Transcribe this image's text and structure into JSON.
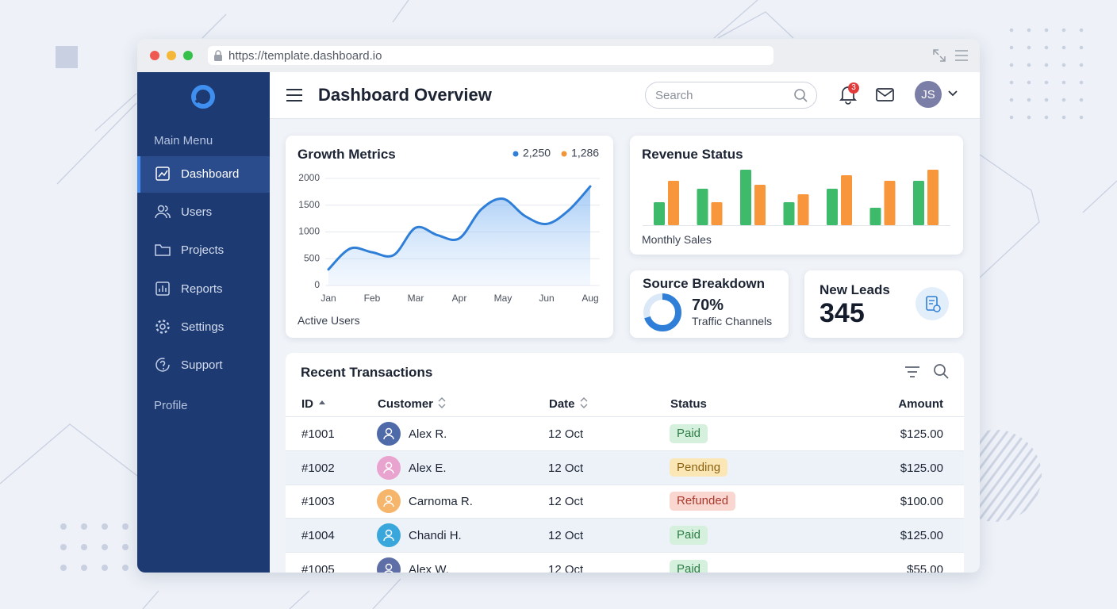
{
  "browser": {
    "url": "https://template.dashboard.io"
  },
  "sidebar": {
    "section_label": "Main Menu",
    "items": [
      "Dashboard",
      "Users",
      "Projects",
      "Reports",
      "Settings",
      "Support"
    ],
    "active": 0,
    "footer": "Profile"
  },
  "header": {
    "title": "Dashboard Overview",
    "search_placeholder": "Search",
    "notification_count": "3",
    "avatar": "JS"
  },
  "chart_data": [
    {
      "type": "line",
      "title": "Growth Metrics",
      "legend": [
        {
          "label": "2,250",
          "color": "#2f7fd8"
        },
        {
          "label": "1,286",
          "color": "#f0953a"
        }
      ],
      "categories": [
        "Jan",
        null,
        "Feb",
        null,
        "Mar",
        null,
        "Apr",
        null,
        "May",
        null,
        "Jun",
        null,
        "Aug"
      ],
      "values": [
        300,
        690,
        620,
        570,
        1080,
        940,
        880,
        1420,
        1620,
        1300,
        1150,
        1400,
        1850
      ],
      "color": "#2f7fd8",
      "ylim": [
        0,
        2000
      ],
      "yticks": [
        0,
        500,
        1000,
        1500,
        2000
      ],
      "grid": true,
      "caption": "Active Users"
    },
    {
      "type": "bar",
      "title": "Revenue Status",
      "categories": [
        null,
        null,
        null,
        null,
        null,
        null,
        null
      ],
      "series": [
        {
          "color": "#3dbb6a",
          "values": [
            29,
            46,
            70,
            29,
            46,
            22,
            56
          ]
        },
        {
          "color": "#f7963a",
          "values": [
            56,
            29,
            51,
            39,
            63,
            56,
            70
          ]
        }
      ],
      "ylim": [
        0,
        70
      ],
      "caption": "Monthly Sales"
    },
    {
      "type": "pie",
      "title": "Source Breakdown",
      "values": [
        70,
        30
      ],
      "value_labels": [
        "70%",
        null
      ],
      "colors": [
        "#2f7fd8",
        "#dbe8f7"
      ],
      "subtitle": "Traffic Channels"
    }
  ],
  "leads": {
    "title": "New Leads",
    "value": "345"
  },
  "table": {
    "title": "Recent Transactions",
    "columns": [
      "ID",
      "Customer",
      "Date",
      "Status",
      "Amount"
    ],
    "rows": [
      {
        "id": "#1001",
        "customer": "Alex R.",
        "date": "12 Oct",
        "status": "Paid",
        "amount": "$125.00",
        "avatar_color": "#4f6aa8",
        "status_colors": [
          "#d5f0dc",
          "#2e7d47"
        ]
      },
      {
        "id": "#1002",
        "customer": "Alex E.",
        "date": "12 Oct",
        "status": "Pending",
        "amount": "$125.00",
        "avatar_color": "#e9a3cf",
        "status_colors": [
          "#fbe7b6",
          "#8a6212"
        ]
      },
      {
        "id": "#1003",
        "customer": "Carnoma R.",
        "date": "12 Oct",
        "status": "Refunded",
        "amount": "$100.00",
        "avatar_color": "#f5b56a",
        "status_colors": [
          "#f9d6d0",
          "#a8392c"
        ]
      },
      {
        "id": "#1004",
        "customer": "Chandi H.",
        "date": "12 Oct",
        "status": "Paid",
        "amount": "$125.00",
        "avatar_color": "#3aa7dc",
        "status_colors": [
          "#d5f0dc",
          "#2e7d47"
        ]
      },
      {
        "id": "#1005",
        "customer": "Alex W.",
        "date": "12 Oct",
        "status": "Paid",
        "amount": "$55.00",
        "avatar_color": "#5d6fa6",
        "status_colors": [
          "#d5f0dc",
          "#2e7d47"
        ]
      }
    ]
  }
}
